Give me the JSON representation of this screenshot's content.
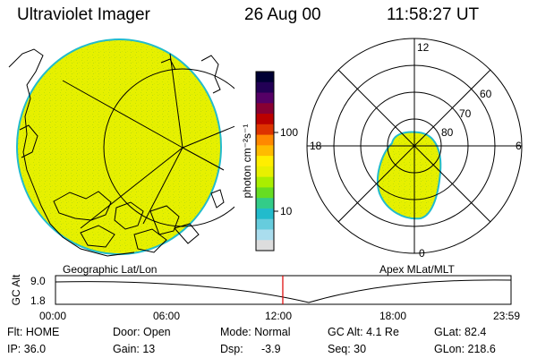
{
  "header": {
    "title": "Ultraviolet Imager",
    "date": "26 Aug 00",
    "time": "11:58:27 UT"
  },
  "colorbar": {
    "unit_label": "photon cm⁻²s⁻¹",
    "ticks": [
      "100",
      "10"
    ],
    "scale": "log",
    "colors": [
      "#000033",
      "#220055",
      "#550066",
      "#880033",
      "#bb0000",
      "#dd3300",
      "#ff8800",
      "#ffbb00",
      "#ffee00",
      "#e8f000",
      "#aaee00",
      "#66dd22",
      "#33cc88",
      "#22bbcc",
      "#66ccdd",
      "#aaddee",
      "#dddddd"
    ]
  },
  "polar_plot": {
    "labels": {
      "top": "12",
      "left": "18",
      "right": "6",
      "bottom": "0"
    },
    "rings": [
      "80",
      "70",
      "60"
    ]
  },
  "frame_labels": {
    "left": "Geographic Lat/Lon",
    "right": "Apex MLat/MLT"
  },
  "altitude_plot": {
    "ylabel": "GC Alt",
    "yticks": [
      "9.0",
      "1.8"
    ],
    "xticks": [
      "00:00",
      "06:00",
      "12:00",
      "18:00",
      "23:59"
    ],
    "marker_time": "11:58",
    "line_color": "#dd0000"
  },
  "footer": {
    "filter": "Flt: HOME",
    "ip": "IP: 36.0",
    "door": "Door: Open",
    "gain": "Gain: 13",
    "mode": "Mode: Normal",
    "dsp": "Dsp:",
    "dsp_value": "-3.9",
    "gc_alt": "GC Alt: 4.1 Re",
    "seq": "Seq: 30",
    "glat": "GLat:  82.4",
    "glon": "GLon: 218.6"
  },
  "colors": {
    "aurora_fill": "#e6f000",
    "aurora_edge": "#22bbcc",
    "background": "#ffffff",
    "marker": "#dd0000"
  }
}
